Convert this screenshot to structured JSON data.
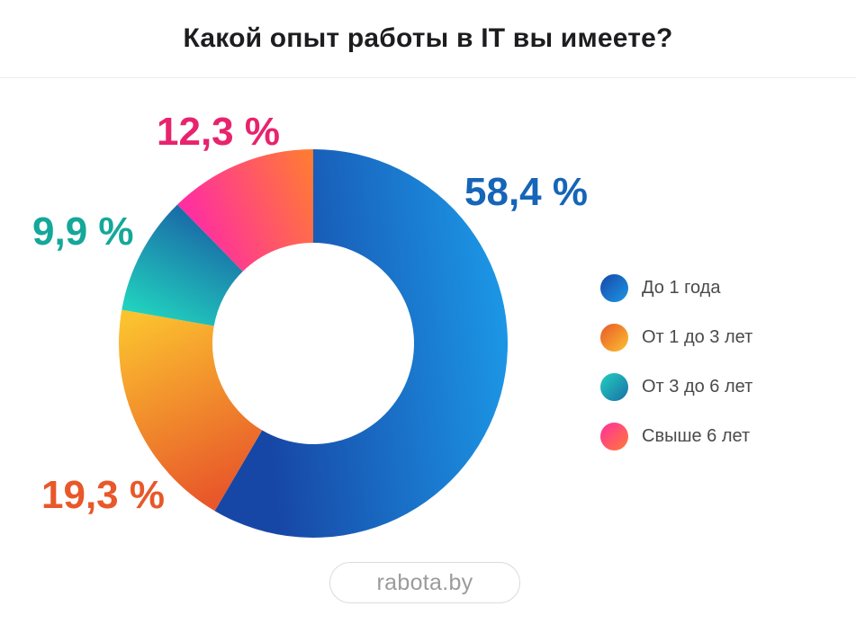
{
  "header": {
    "title": "Какой опыт работы в IT вы имеете?"
  },
  "chart_data": {
    "type": "pie",
    "variant": "donut",
    "title": "Какой опыт работы в IT вы имеете?",
    "categories": [
      "До 1 года",
      "От 1 до 3 лет",
      "От 3 до 6 лет",
      "Свыше 6 лет"
    ],
    "values": [
      58.4,
      19.3,
      9.9,
      12.3
    ],
    "value_labels": [
      "58,4 %",
      "19,3 %",
      "9,9 %",
      "12,3 %"
    ],
    "colors": [
      {
        "start": "#1747a6",
        "end": "#1c97e6",
        "label": "#1565b8"
      },
      {
        "start": "#e8582a",
        "end": "#fbc22f",
        "label": "#e8582a"
      },
      {
        "start": "#21d0be",
        "end": "#1a6fa8",
        "label": "#14a89a"
      },
      {
        "start": "#ff2fa0",
        "end": "#ff7a35",
        "label": "#e8236d"
      }
    ],
    "legend_position": "right"
  },
  "legend": {
    "items": [
      {
        "label": "До 1 года"
      },
      {
        "label": "От 1 до 3 лет"
      },
      {
        "label": "От 3 до 6 лет"
      },
      {
        "label": "Свыше 6 лет"
      }
    ]
  },
  "footer": {
    "brand": "rabota.by"
  }
}
